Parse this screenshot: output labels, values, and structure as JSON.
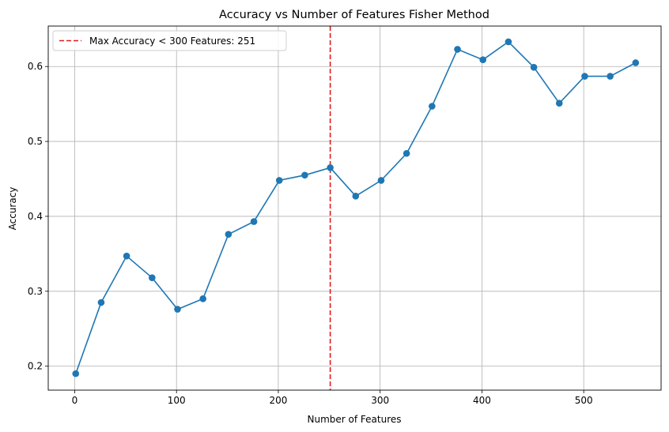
{
  "chart_data": {
    "type": "line",
    "title": "Accuracy vs Number of Features Fisher Method",
    "xlabel": "Number of Features",
    "ylabel": "Accuracy",
    "xlim": [
      -26,
      576
    ],
    "ylim": [
      0.168,
      0.654
    ],
    "xticks": [
      0,
      100,
      200,
      300,
      400,
      500
    ],
    "yticks": [
      0.2,
      0.3,
      0.4,
      0.5,
      0.6
    ],
    "ytick_labels": [
      "0.2",
      "0.3",
      "0.4",
      "0.5",
      "0.6"
    ],
    "grid": true,
    "legend_position": "upper-left",
    "series": [
      {
        "color": "#1f77b4",
        "marker": "circle",
        "x": [
          1,
          26,
          51,
          76,
          101,
          126,
          151,
          176,
          201,
          226,
          251,
          276,
          301,
          326,
          351,
          376,
          401,
          426,
          451,
          476,
          501,
          526,
          551
        ],
        "y": [
          0.19,
          0.285,
          0.347,
          0.318,
          0.276,
          0.29,
          0.376,
          0.393,
          0.448,
          0.455,
          0.465,
          0.427,
          0.448,
          0.484,
          0.547,
          0.623,
          0.609,
          0.633,
          0.599,
          0.551,
          0.587,
          0.587,
          0.605
        ]
      }
    ],
    "vline": {
      "x": 251,
      "color": "#e41a1c",
      "style": "dashed",
      "label": "Max Accuracy < 300 Features: 251"
    }
  }
}
